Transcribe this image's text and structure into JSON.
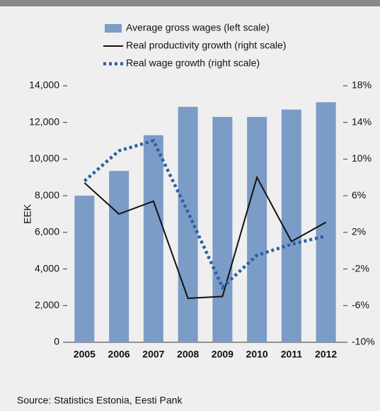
{
  "chart_data": {
    "type": "bar",
    "categories": [
      "2005",
      "2006",
      "2007",
      "2008",
      "2009",
      "2010",
      "2011",
      "2012"
    ],
    "ylabel": "EEK",
    "ylim": [
      0,
      14000
    ],
    "yticks": [
      0,
      {
        "value": 2000,
        "label": "2,000"
      },
      {
        "value": 4000,
        "label": "4,000"
      },
      {
        "value": 6000,
        "label": "6,000"
      },
      {
        "value": 8000,
        "label": "8,000"
      },
      {
        "value": 10000,
        "label": "10,000"
      },
      {
        "value": 12000,
        "label": "12,000"
      },
      {
        "value": 14000,
        "label": "14,000"
      }
    ],
    "y2lim": [
      -10,
      18
    ],
    "y2ticks": [
      {
        "value": -10,
        "label": "-10%"
      },
      {
        "value": -6,
        "label": "-6%"
      },
      {
        "value": -2,
        "label": "-2%"
      },
      {
        "value": 2,
        "label": "2%"
      },
      {
        "value": 6,
        "label": "6%"
      },
      {
        "value": 10,
        "label": "10%"
      },
      {
        "value": 14,
        "label": "14%"
      },
      {
        "value": 18,
        "label": "18%"
      }
    ],
    "series": [
      {
        "name": "Average gross wages (left scale)",
        "type": "bar",
        "color": "#7b9cc6",
        "values": [
          8000,
          9350,
          11300,
          12850,
          12300,
          12300,
          12700,
          13100
        ]
      },
      {
        "name": "Real productivity growth (right scale)",
        "type": "line",
        "style": "solid",
        "axis": "y2",
        "color": "#111111",
        "values": [
          7.4,
          4.0,
          5.4,
          -5.2,
          -5.0,
          8.0,
          1.0,
          3.1
        ]
      },
      {
        "name": "Real wage growth (right scale)",
        "type": "line",
        "style": "dotted",
        "axis": "y2",
        "color": "#2f5fa3",
        "values": [
          7.6,
          10.9,
          12.0,
          4.2,
          -4.0,
          -0.5,
          0.7,
          1.6
        ]
      }
    ],
    "source": "Source: Statistics Estonia, Eesti Pank"
  }
}
